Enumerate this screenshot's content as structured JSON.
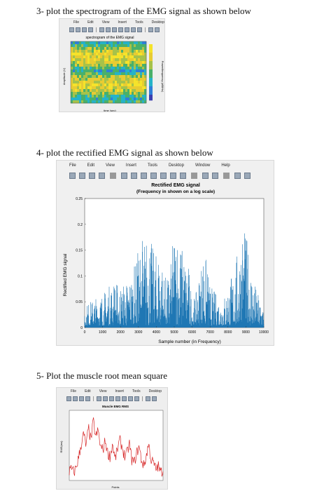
{
  "headings": {
    "h3": "3- plot the spectrogram of the EMG signal as shown below",
    "h4": "4- plot the rectified EMG signal as shown below",
    "h5": "5- Plot the muscle root mean square"
  },
  "menu": {
    "items": [
      "File",
      "Edit",
      "View",
      "Insert",
      "Tools",
      "Desktop",
      "Window",
      "Help"
    ]
  },
  "figure1": {
    "title": "spectrogram of the EMG signal",
    "ylabel": "Amplitude (V)",
    "xlabel": "time (sec)",
    "clabel": "Power/frequency (dB/Hz)"
  },
  "figure2": {
    "title_line1": "Rectified EMG signal",
    "title_line2": "(Frequency in shown on a log scale)",
    "ylabel": "Rectified EMG signal",
    "xlabel": "Sample number (in Frequency)"
  },
  "figure3": {
    "title": "Muscle EMG RMS",
    "ylabel": "RMS(mv)",
    "xlabel": "Points"
  },
  "chart_data": [
    {
      "type": "heatmap",
      "title": "spectrogram of the EMG signal",
      "xlabel": "time (sec)",
      "ylabel": "Amplitude (V)",
      "colormap": "parula",
      "colors": {
        "low": "#3b3fb0",
        "mid": "#49b06a",
        "high": "#f5e32a"
      }
    },
    {
      "type": "line",
      "title": "Rectified EMG signal",
      "xlabel": "Sample number (in Frequency)",
      "ylabel": "Rectified EMG signal",
      "xlim": [
        0,
        10000
      ],
      "ylim": [
        0,
        0.25
      ],
      "xticks": [
        "0",
        "1000",
        "2000",
        "3000",
        "4000",
        "5000",
        "6000",
        "7000",
        "8000",
        "9000",
        "10000"
      ],
      "yticks": [
        "0",
        "0.05",
        "0.1",
        "0.15",
        "0.2",
        "0.25"
      ],
      "color": "#1f77b4",
      "envelope": {
        "x": [
          0,
          400,
          800,
          1200,
          1600,
          2000,
          2400,
          2800,
          3000,
          3200,
          3400,
          3600,
          3800,
          4000,
          4200,
          4400,
          4600,
          4800,
          5000,
          5200,
          5400,
          5600,
          5800,
          6000,
          6200,
          6400,
          6600,
          6800,
          7000,
          7200,
          7400,
          7600,
          7800,
          8000,
          8200,
          8400,
          8600,
          8800,
          9000,
          9200,
          9400,
          9600,
          9800,
          10000
        ],
        "y": [
          0.04,
          0.05,
          0.06,
          0.07,
          0.09,
          0.08,
          0.09,
          0.12,
          0.15,
          0.18,
          0.17,
          0.2,
          0.15,
          0.14,
          0.16,
          0.11,
          0.09,
          0.12,
          0.19,
          0.2,
          0.16,
          0.14,
          0.12,
          0.05,
          0.06,
          0.1,
          0.15,
          0.13,
          0.08,
          0.07,
          0.06,
          0.05,
          0.06,
          0.08,
          0.1,
          0.12,
          0.16,
          0.2,
          0.18,
          0.14,
          0.1,
          0.07,
          0.05,
          0.04
        ]
      }
    },
    {
      "type": "line",
      "title": "Muscle EMG RMS",
      "xlabel": "Points",
      "ylabel": "RMS(mv)",
      "color": "#d62728",
      "y": [
        0.12,
        0.15,
        0.1,
        0.2,
        0.35,
        0.55,
        0.7,
        0.5,
        0.8,
        0.6,
        0.9,
        0.65,
        0.75,
        0.5,
        0.45,
        0.6,
        0.4,
        0.35,
        0.55,
        0.3,
        0.45,
        0.6,
        0.5,
        0.35,
        0.4,
        0.55,
        0.3,
        0.25,
        0.4,
        0.5,
        0.3,
        0.2,
        0.35,
        0.55,
        0.3,
        0.25,
        0.15,
        0.2,
        0.1,
        0.15
      ]
    }
  ]
}
